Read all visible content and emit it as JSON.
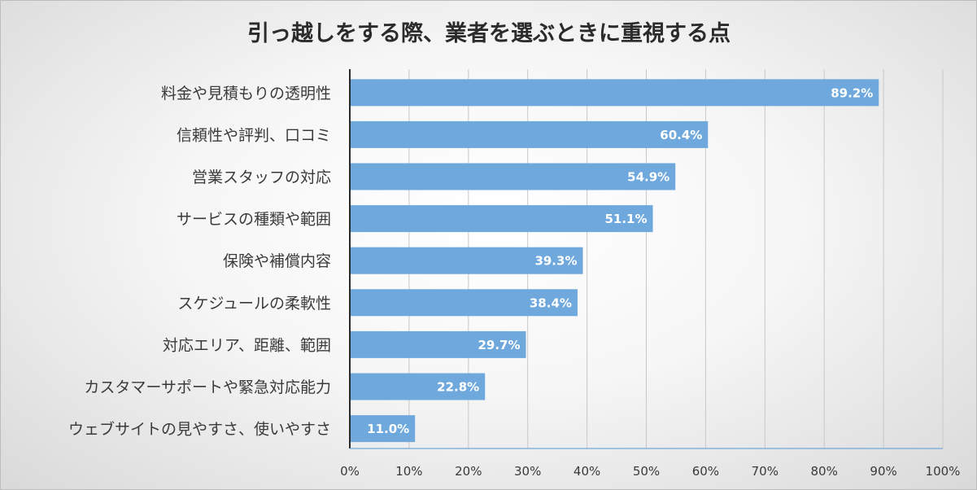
{
  "chart_data": {
    "type": "bar",
    "orientation": "horizontal",
    "title": "引っ越しをする際、業者を選ぶときに重視する点",
    "categories": [
      "料金や見積もりの透明性",
      "信頼性や評判、口コミ",
      "営業スタッフの対応",
      "サービスの種類や範囲",
      "保険や補償内容",
      "スケジュールの柔軟性",
      "対応エリア、距離、範囲",
      "カスタマーサポートや緊急対応能力",
      "ウェブサイトの見やすさ、使いやすさ"
    ],
    "values": [
      89.2,
      60.4,
      54.9,
      51.1,
      39.3,
      38.4,
      29.7,
      22.8,
      11.0
    ],
    "data_labels": [
      "89.2%",
      "60.4%",
      "54.9%",
      "51.1%",
      "39.3%",
      "38.4%",
      "29.7%",
      "22.8%",
      "11.0%"
    ],
    "xlim": [
      0,
      100
    ],
    "x_ticks": [
      0,
      10,
      20,
      30,
      40,
      50,
      60,
      70,
      80,
      90,
      100
    ],
    "x_tick_labels": [
      "0%",
      "10%",
      "20%",
      "30%",
      "40%",
      "50%",
      "60%",
      "70%",
      "80%",
      "90%",
      "100%"
    ],
    "grid": true,
    "legend": "none",
    "bar_color": "#6fa8dc",
    "data_label_color": "#ffffff"
  }
}
